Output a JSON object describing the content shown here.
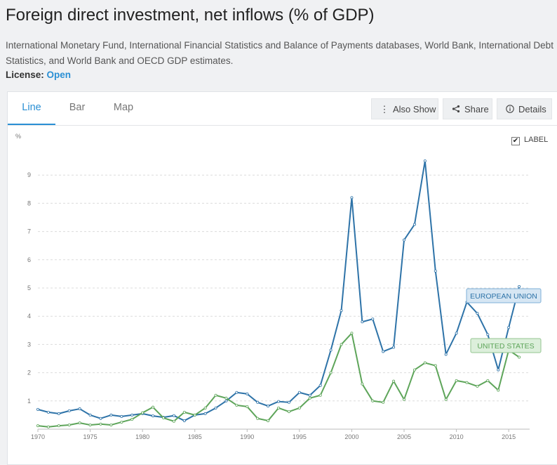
{
  "page": {
    "title": "Foreign direct investment, net inflows (% of GDP)",
    "source": "International Monetary Fund, International Financial Statistics and Balance of Payments databases, World Bank, International Debt Statistics, and World Bank and OECD GDP estimates.",
    "license_label": "License:",
    "license_value": "Open"
  },
  "tabs": [
    {
      "label": "Line",
      "active": true
    },
    {
      "label": "Bar",
      "active": false
    },
    {
      "label": "Map",
      "active": false
    }
  ],
  "buttons": {
    "also_show": {
      "label": "Also Show",
      "icon": "vertical-dots-icon"
    },
    "share": {
      "label": "Share",
      "icon": "share-icon"
    },
    "details": {
      "label": "Details",
      "icon": "info-circle-icon"
    }
  },
  "label_toggle": {
    "label": "LABEL",
    "checked": true
  },
  "colors": {
    "accent": "#2a8fd4",
    "eu": "#2e73a8",
    "us": "#5ea55a"
  },
  "chart_data": {
    "type": "line",
    "ylabel": "%",
    "x": [
      1970,
      1971,
      1972,
      1973,
      1974,
      1975,
      1976,
      1977,
      1978,
      1979,
      1980,
      1981,
      1982,
      1983,
      1984,
      1985,
      1986,
      1987,
      1988,
      1989,
      1990,
      1991,
      1992,
      1993,
      1994,
      1995,
      1996,
      1997,
      1998,
      1999,
      2000,
      2001,
      2002,
      2003,
      2004,
      2005,
      2006,
      2007,
      2008,
      2009,
      2010,
      2011,
      2012,
      2013,
      2014,
      2015,
      2016
    ],
    "xticks": [
      1970,
      1975,
      1980,
      1985,
      1990,
      1995,
      2000,
      2005,
      2010,
      2015
    ],
    "yticks": [
      1,
      2,
      3,
      4,
      5,
      6,
      7,
      8,
      9
    ],
    "xlim": [
      1970,
      2017
    ],
    "ylim": [
      0,
      10
    ],
    "grid": true,
    "series": [
      {
        "name": "EUROPEAN UNION",
        "color": "#2e73a8",
        "values": [
          0.7,
          0.6,
          0.55,
          0.65,
          0.72,
          0.5,
          0.38,
          0.5,
          0.45,
          0.5,
          0.55,
          0.47,
          0.42,
          0.48,
          0.3,
          0.5,
          0.55,
          0.75,
          1.0,
          1.3,
          1.25,
          0.95,
          0.82,
          0.98,
          0.95,
          1.3,
          1.2,
          1.55,
          2.8,
          4.2,
          8.2,
          3.8,
          3.9,
          2.75,
          2.9,
          6.7,
          7.25,
          9.5,
          5.6,
          2.65,
          3.4,
          4.5,
          4.1,
          3.35,
          2.1,
          3.6,
          5.05
        ]
      },
      {
        "name": "UNITED STATES",
        "color": "#5ea55a",
        "values": [
          0.12,
          0.08,
          0.12,
          0.15,
          0.22,
          0.15,
          0.18,
          0.15,
          0.25,
          0.35,
          0.58,
          0.78,
          0.4,
          0.28,
          0.6,
          0.5,
          0.75,
          1.2,
          1.1,
          0.85,
          0.8,
          0.38,
          0.3,
          0.75,
          0.62,
          0.75,
          1.1,
          1.2,
          2.0,
          3.0,
          3.4,
          1.6,
          1.0,
          0.95,
          1.7,
          1.05,
          2.1,
          2.35,
          2.25,
          1.05,
          1.72,
          1.65,
          1.52,
          1.72,
          1.38,
          2.8,
          2.55
        ]
      }
    ]
  }
}
